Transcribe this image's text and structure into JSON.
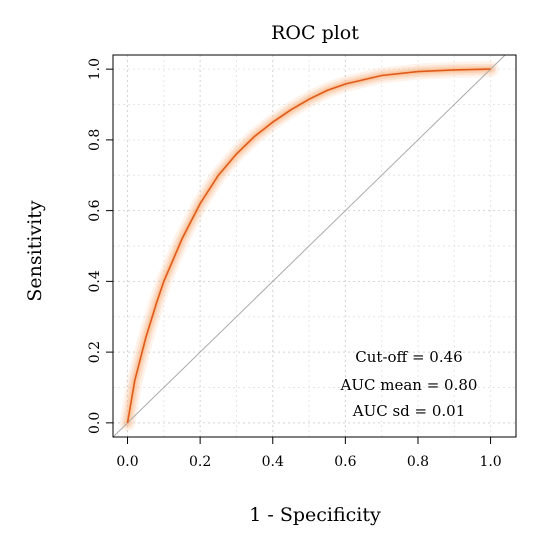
{
  "chart_data": {
    "type": "line",
    "title": "ROC plot",
    "xlabel": "1 - Specificity",
    "ylabel": "Sensitivity",
    "xlim": [
      -0.04,
      1.07
    ],
    "ylim": [
      -0.04,
      1.04
    ],
    "xticks": [
      0.0,
      0.2,
      0.4,
      0.6,
      0.8,
      1.0
    ],
    "xtick_labels": [
      "0.0",
      "0.2",
      "0.4",
      "0.6",
      "0.8",
      "1.0"
    ],
    "yticks": [
      0.0,
      0.2,
      0.4,
      0.6,
      0.8,
      1.0
    ],
    "ytick_labels": [
      "0.0",
      "0.2",
      "0.4",
      "0.6",
      "0.8",
      "1.0"
    ],
    "grid": true,
    "series": [
      {
        "x": [
          0.0,
          0.02,
          0.05,
          0.08,
          0.1,
          0.15,
          0.2,
          0.25,
          0.3,
          0.35,
          0.4,
          0.45,
          0.5,
          0.55,
          0.6,
          0.7,
          0.8,
          0.9,
          1.0
        ],
        "y": [
          0.0,
          0.12,
          0.24,
          0.34,
          0.4,
          0.52,
          0.62,
          0.7,
          0.76,
          0.81,
          0.85,
          0.885,
          0.915,
          0.94,
          0.958,
          0.982,
          0.993,
          0.998,
          1.0
        ],
        "color": "#e05a1a",
        "band_color": "#f8b888"
      }
    ],
    "reference_line": {
      "x": [
        -0.04,
        1.04
      ],
      "y": [
        -0.04,
        1.04
      ],
      "color": "#aaaaaa"
    },
    "annotations": [
      "Cut-off = 0.46",
      "AUC mean = 0.80",
      "AUC sd = 0.01"
    ]
  }
}
